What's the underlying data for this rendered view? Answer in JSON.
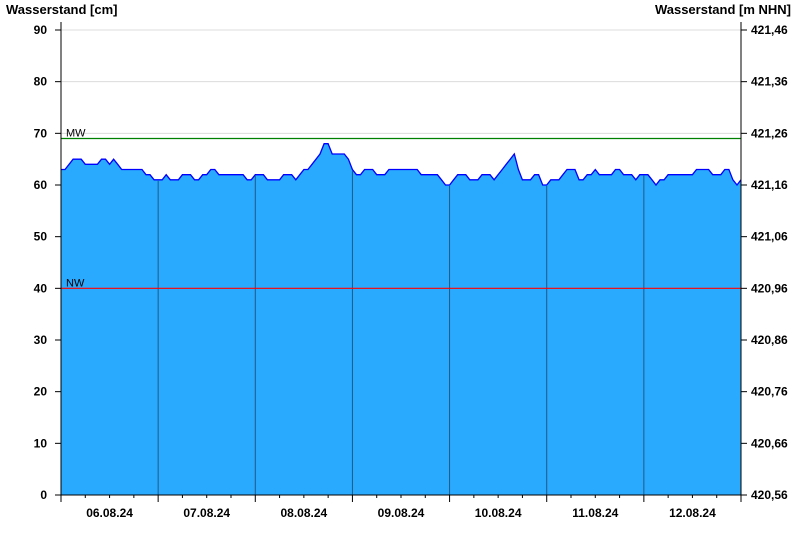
{
  "chart_data": {
    "type": "area",
    "ylabel_left": "Wasserstand [cm]",
    "ylabel_right": "Wasserstand [m NHN]",
    "ylim": [
      0,
      90
    ],
    "yticks": [
      0,
      10,
      20,
      30,
      40,
      50,
      60,
      70,
      80,
      90
    ],
    "yticks_right": [
      "420,56",
      "420,66",
      "420,76",
      "420,86",
      "420,96",
      "421,06",
      "421,16",
      "421,26",
      "421,36",
      "421,46"
    ],
    "x_range": [
      "06.08.24 00:00",
      "13.08.24 00:00"
    ],
    "xtick_labels": [
      "06.08.24",
      "07.08.24",
      "08.08.24",
      "09.08.24",
      "10.08.24",
      "11.08.24",
      "12.08.24"
    ],
    "grid": true,
    "reference_lines": [
      {
        "label": "MW",
        "value": 69,
        "color": "#008000"
      },
      {
        "label": "NW",
        "value": 40,
        "color": "#ff0000"
      }
    ],
    "series": [
      {
        "sampling": "hourly",
        "fill_color": "#2aaaff",
        "line_color": "#0000ff",
        "values": [
          63,
          63,
          64,
          65,
          65,
          65,
          64,
          64,
          64,
          64,
          65,
          65,
          64,
          65,
          64,
          63,
          63,
          63,
          63,
          63,
          63,
          62,
          62,
          61,
          61,
          61,
          62,
          61,
          61,
          61,
          62,
          62,
          62,
          61,
          61,
          62,
          62,
          63,
          63,
          62,
          62,
          62,
          62,
          62,
          62,
          62,
          61,
          61,
          62,
          62,
          62,
          61,
          61,
          61,
          61,
          62,
          62,
          62,
          61,
          62,
          63,
          63,
          64,
          65,
          66,
          68,
          68,
          66,
          66,
          66,
          66,
          65,
          63,
          62,
          62,
          63,
          63,
          63,
          62,
          62,
          62,
          63,
          63,
          63,
          63,
          63,
          63,
          63,
          63,
          62,
          62,
          62,
          62,
          62,
          61,
          60,
          60,
          61,
          62,
          62,
          62,
          61,
          61,
          61,
          62,
          62,
          62,
          61,
          62,
          63,
          64,
          65,
          66,
          63,
          61,
          61,
          61,
          62,
          62,
          60,
          60,
          61,
          61,
          61,
          62,
          63,
          63,
          63,
          61,
          61,
          62,
          62,
          63,
          62,
          62,
          62,
          62,
          63,
          63,
          62,
          62,
          62,
          61,
          62,
          62,
          62,
          61,
          60,
          61,
          61,
          62,
          62,
          62,
          62,
          62,
          62,
          62,
          63,
          63,
          63,
          63,
          62,
          62,
          62,
          63,
          63,
          61,
          60,
          61
        ]
      }
    ]
  }
}
